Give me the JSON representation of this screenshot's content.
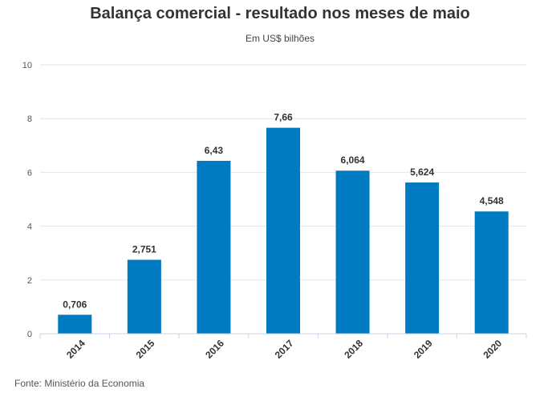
{
  "chart_data": {
    "type": "bar",
    "title": "Balança comercial - resultado nos meses de maio",
    "subtitle": "Em US$ bilhões",
    "categories": [
      "2014",
      "2015",
      "2016",
      "2017",
      "2018",
      "2019",
      "2020"
    ],
    "values": [
      0.706,
      2.751,
      6.43,
      7.66,
      6.064,
      5.624,
      4.548
    ],
    "value_labels": [
      "0,706",
      "2,751",
      "6,43",
      "7,66",
      "6,064",
      "5,624",
      "4,548"
    ],
    "ylim": [
      0,
      10
    ],
    "yticks": [
      0,
      2,
      4,
      6,
      8,
      10
    ],
    "xlabel": "",
    "ylabel": "",
    "grid": true,
    "bar_color": "#007ac1"
  },
  "source": "Fonte: Ministério da Economia"
}
